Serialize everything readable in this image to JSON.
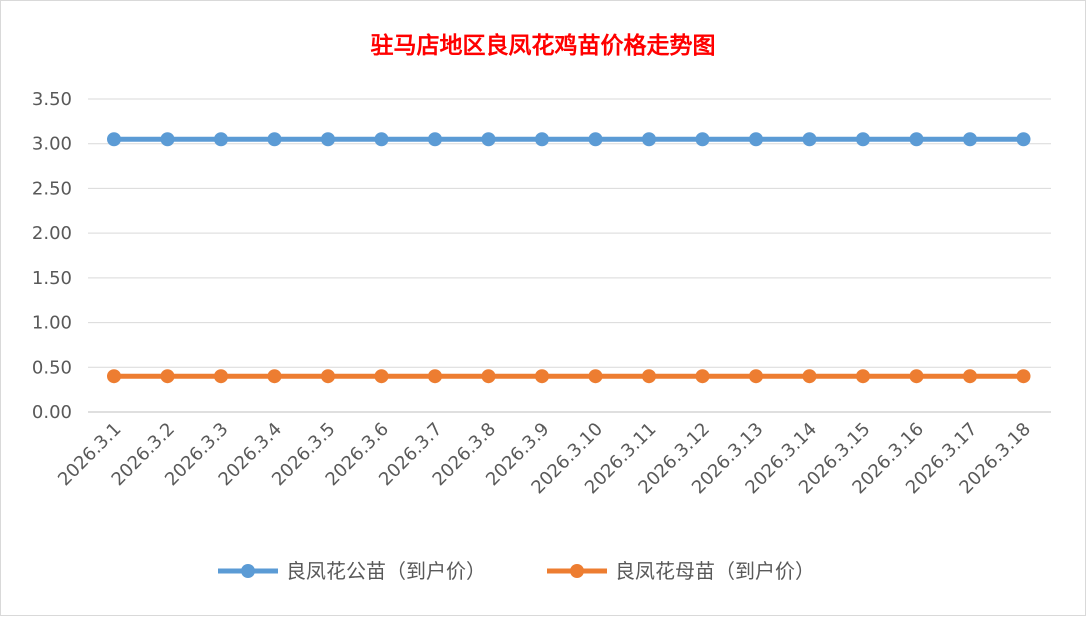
{
  "chart_data": {
    "type": "line",
    "title": "驻马店地区良凤花鸡苗价格走势图",
    "categories": [
      "2026.3.1",
      "2026.3.2",
      "2026.3.3",
      "2026.3.4",
      "2026.3.5",
      "2026.3.6",
      "2026.3.7",
      "2026.3.8",
      "2026.3.9",
      "2026.3.10",
      "2026.3.11",
      "2026.3.12",
      "2026.3.13",
      "2026.3.14",
      "2026.3.15",
      "2026.3.16",
      "2026.3.17",
      "2026.3.18"
    ],
    "series": [
      {
        "name": "良凤花公苗（到户价）",
        "color": "#5b9bd5",
        "values": [
          3.05,
          3.05,
          3.05,
          3.05,
          3.05,
          3.05,
          3.05,
          3.05,
          3.05,
          3.05,
          3.05,
          3.05,
          3.05,
          3.05,
          3.05,
          3.05,
          3.05,
          3.05
        ]
      },
      {
        "name": "良凤花母苗（到户价）",
        "color": "#ed7d31",
        "values": [
          0.4,
          0.4,
          0.4,
          0.4,
          0.4,
          0.4,
          0.4,
          0.4,
          0.4,
          0.4,
          0.4,
          0.4,
          0.4,
          0.4,
          0.4,
          0.4,
          0.4,
          0.4
        ]
      }
    ],
    "yticks": [
      "0.00",
      "0.50",
      "1.00",
      "1.50",
      "2.00",
      "2.50",
      "3.00",
      "3.50"
    ],
    "ylim": [
      0,
      3.5
    ],
    "grid": true,
    "legend": "bottom"
  }
}
